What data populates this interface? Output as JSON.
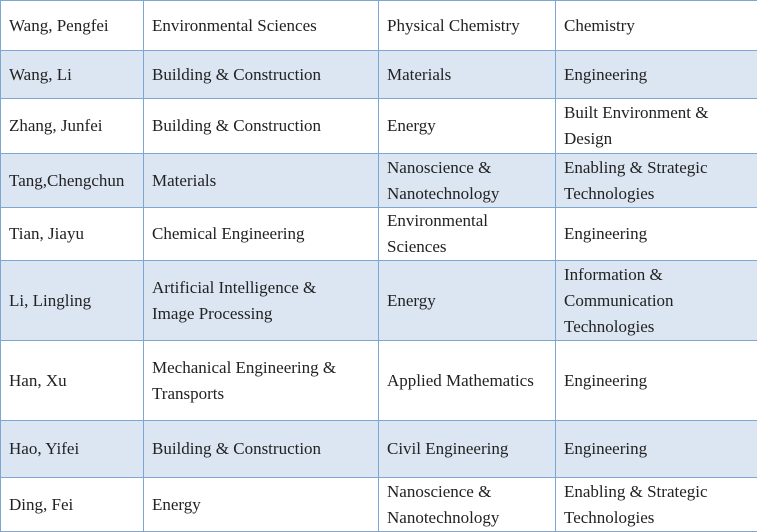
{
  "table": {
    "rows": [
      [
        "Wang, Pengfei",
        "Environmental Sciences",
        "Physical Chemistry",
        "Chemistry"
      ],
      [
        "Wang, Li",
        "Building & Construction",
        "Materials",
        "Engineering"
      ],
      [
        "Zhang, Junfei",
        "Building & Construction",
        "Energy",
        "Built Environment & Design"
      ],
      [
        "Tang,Chengchun",
        "Materials",
        "Nanoscience & Nanotechnology",
        "Enabling & Strategic Technologies"
      ],
      [
        "Tian, Jiayu",
        "Chemical Engineering",
        "Environmental Sciences",
        "Engineering"
      ],
      [
        "Li, Lingling",
        "Artificial Intelligence & Image Processing",
        "Energy",
        "Information & Communication Technologies"
      ],
      [
        "Han, Xu",
        "Mechanical Engineering & Transports",
        "Applied Mathematics",
        "Engineering"
      ],
      [
        "Hao, Yifei",
        "Building & Construction",
        "Civil Engineering",
        "Engineering"
      ],
      [
        "Ding, Fei",
        "Energy",
        "Nanoscience & Nanotechnology",
        "Enabling & Strategic Technologies"
      ]
    ]
  }
}
